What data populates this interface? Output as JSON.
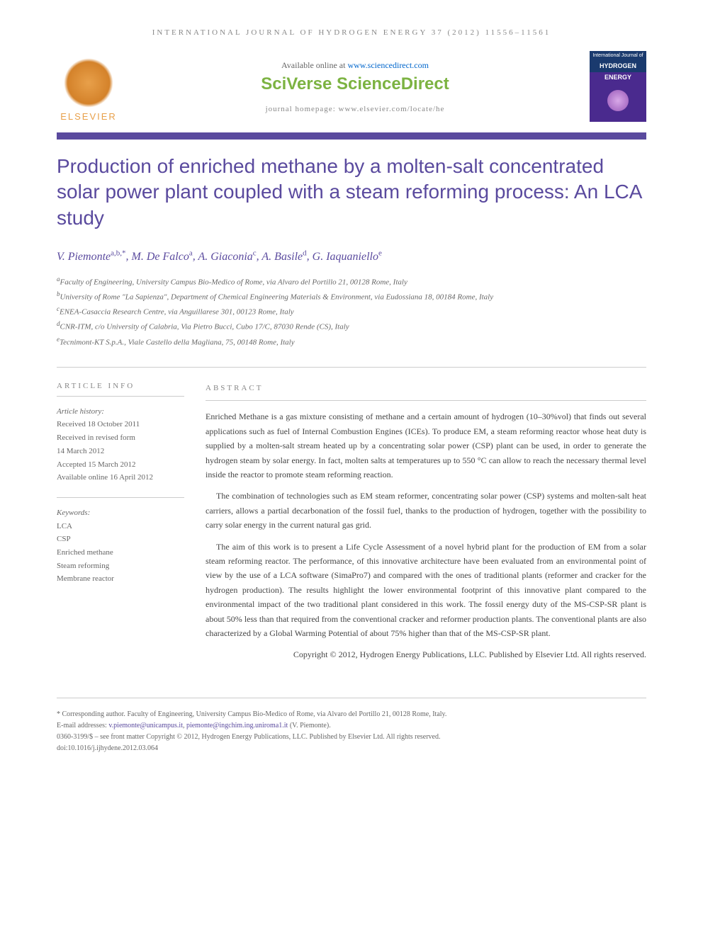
{
  "journal_header": "INTERNATIONAL JOURNAL OF HYDROGEN ENERGY 37 (2012) 11556–11561",
  "header": {
    "elsevier_label": "ELSEVIER",
    "available_prefix": "Available online at ",
    "available_link": "www.sciencedirect.com",
    "platform": "SciVerse ScienceDirect",
    "homepage": "journal homepage: www.elsevier.com/locate/he",
    "cover_line1": "International Journal of",
    "cover_line2": "HYDROGEN",
    "cover_line3": "ENERGY"
  },
  "title": "Production of enriched methane by a molten-salt concentrated solar power plant coupled with a steam reforming process: An LCA study",
  "authors": [
    {
      "name": "V. Piemonte",
      "sup": "a,b,*"
    },
    {
      "name": "M. De Falco",
      "sup": "a"
    },
    {
      "name": "A. Giaconia",
      "sup": "c"
    },
    {
      "name": "A. Basile",
      "sup": "d"
    },
    {
      "name": "G. Iaquaniello",
      "sup": "e"
    }
  ],
  "affiliations": [
    {
      "sup": "a",
      "text": "Faculty of Engineering, University Campus Bio-Medico of Rome, via Alvaro del Portillo 21, 00128 Rome, Italy"
    },
    {
      "sup": "b",
      "text": "University of Rome \"La Sapienza\", Department of Chemical Engineering Materials & Environment, via Eudossiana 18, 00184 Rome, Italy"
    },
    {
      "sup": "c",
      "text": "ENEA-Casaccia Research Centre, via Anguillarese 301, 00123 Rome, Italy"
    },
    {
      "sup": "d",
      "text": "CNR-ITM, c/o University of Calabria, Via Pietro Bucci, Cubo 17/C, 87030 Rende (CS), Italy"
    },
    {
      "sup": "e",
      "text": "Tecnimont-KT S.p.A., Viale Castello della Magliana, 75, 00148 Rome, Italy"
    }
  ],
  "info": {
    "heading": "ARTICLE INFO",
    "history_label": "Article history:",
    "history": [
      "Received 18 October 2011",
      "Received in revised form",
      "14 March 2012",
      "Accepted 15 March 2012",
      "Available online 16 April 2012"
    ],
    "keywords_label": "Keywords:",
    "keywords": [
      "LCA",
      "CSP",
      "Enriched methane",
      "Steam reforming",
      "Membrane reactor"
    ]
  },
  "abstract": {
    "heading": "ABSTRACT",
    "paragraphs": [
      "Enriched Methane is a gas mixture consisting of methane and a certain amount of hydrogen (10–30%vol) that finds out several applications such as fuel of Internal Combustion Engines (ICEs). To produce EM, a steam reforming reactor whose heat duty is supplied by a molten-salt stream heated up by a concentrating solar power (CSP) plant can be used, in order to generate the hydrogen steam by solar energy. In fact, molten salts at temperatures up to 550 °C can allow to reach the necessary thermal level inside the reactor to promote steam reforming reaction.",
      "The combination of technologies such as EM steam reformer, concentrating solar power (CSP) systems and molten-salt heat carriers, allows a partial decarbonation of the fossil fuel, thanks to the production of hydrogen, together with the possibility to carry solar energy in the current natural gas grid.",
      "The aim of this work is to present a Life Cycle Assessment of a novel hybrid plant for the production of EM from a solar steam reforming reactor. The performance, of this innovative architecture have been evaluated from an environmental point of view by the use of a LCA software (SimaPro7) and compared with the ones of traditional plants (reformer and cracker for the hydrogen production). The results highlight the lower environmental footprint of this innovative plant compared to the environmental impact of the two traditional plant considered in this work. The fossil energy duty of the MS-CSP-SR plant is about 50% less than that required from the conventional cracker and reformer production plants. The conventional plants are also characterized by a Global Warming Potential of about 75% higher than that of the MS-CSP-SR plant."
    ],
    "copyright": "Copyright © 2012, Hydrogen Energy Publications, LLC. Published by Elsevier Ltd. All rights reserved."
  },
  "footer": {
    "corresponding_label": "* Corresponding author.",
    "corresponding_text": " Faculty of Engineering, University Campus Bio-Medico of Rome, via Alvaro del Portillo 21, 00128 Rome, Italy.",
    "email_label": "E-mail addresses: ",
    "emails": [
      "v.piemonte@unicampus.it",
      "piemonte@ingchim.ing.uniroma1.it"
    ],
    "email_suffix": " (V. Piemonte).",
    "issn": "0360-3199/$ – see front matter Copyright © 2012, Hydrogen Energy Publications, LLC. Published by Elsevier Ltd. All rights reserved.",
    "doi": "doi:10.1016/j.ijhydene.2012.03.064"
  },
  "colors": {
    "purple": "#5a4a9e",
    "green": "#7cb342",
    "orange": "#e8a04a",
    "blue_link": "#0066cc",
    "text": "#444",
    "muted": "#888"
  }
}
